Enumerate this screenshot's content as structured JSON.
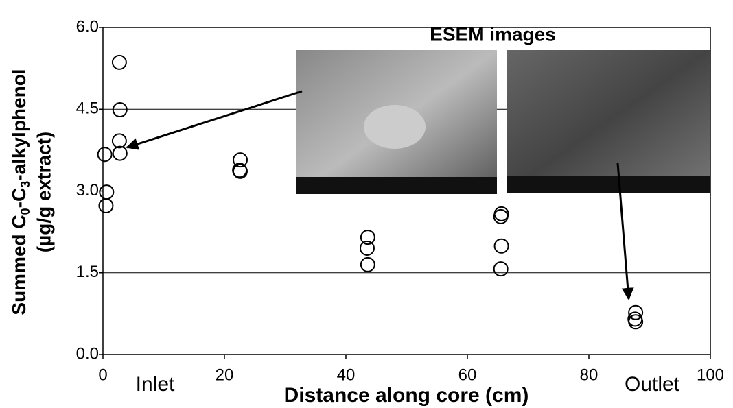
{
  "chart_data": {
    "type": "scatter",
    "annotations": [
      "ESEM images",
      "Inlet",
      "Outlet"
    ],
    "xlabel": "Distance along core (cm)",
    "ylabel_parts": [
      "Summed C",
      "0",
      "-C",
      "3",
      "-alkylphenol"
    ],
    "ylabel_line2": "(µg/g extract)",
    "xlim": [
      0,
      100
    ],
    "xticks": [
      0,
      20,
      40,
      60,
      80,
      100
    ],
    "ylim": [
      0,
      6
    ],
    "yticks": [
      {
        "value": 0,
        "label": "0.0"
      },
      1.5,
      {
        "value": 3,
        "label": "3.0"
      },
      4.5,
      {
        "value": 6,
        "label": "6.0"
      }
    ],
    "grid": true,
    "color": "#000000",
    "x": [
      0.3,
      0.6,
      0.5,
      2.7,
      2.8,
      2.7,
      2.8,
      22.6,
      22.5,
      22.6,
      43.6,
      43.5,
      43.6,
      65.6,
      65.5,
      65.6,
      65.5,
      87.7,
      87.6,
      87.7
    ],
    "values": [
      3.67,
      2.98,
      2.73,
      5.36,
      4.49,
      3.92,
      3.69,
      3.57,
      3.38,
      3.36,
      2.15,
      1.95,
      1.65,
      2.58,
      2.53,
      1.99,
      1.57,
      0.77,
      0.65,
      0.6
    ]
  }
}
